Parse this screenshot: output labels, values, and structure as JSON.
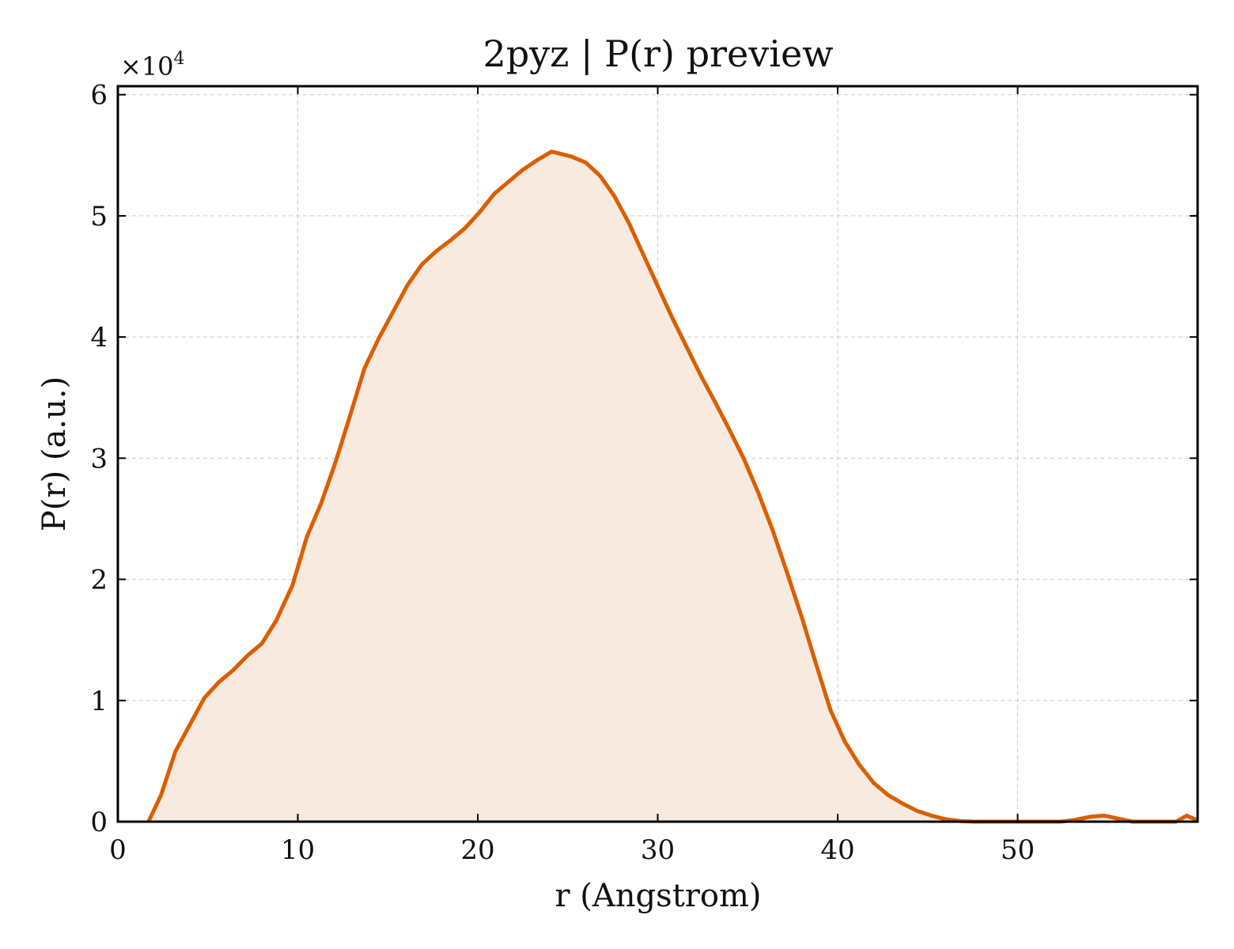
{
  "colors": {
    "line": "#d95f02",
    "fill": "#f9eadf"
  },
  "chart_data": {
    "type": "area",
    "title": "2pyz | P(r) preview",
    "xlabel": "r (Angstrom)",
    "ylabel": "P(r) (a.u.)",
    "y_multiplier_text": "×10",
    "y_multiplier_exponent": "4",
    "xlim": [
      0,
      60
    ],
    "ylim": [
      0,
      60700
    ],
    "xticks": [
      0,
      10,
      20,
      30,
      40,
      50
    ],
    "xtick_labels": [
      "0",
      "10",
      "20",
      "30",
      "40",
      "50"
    ],
    "yticks": [
      0,
      10000,
      20000,
      30000,
      40000,
      50000,
      60000
    ],
    "ytick_labels": [
      "0",
      "1",
      "2",
      "3",
      "4",
      "5",
      "6"
    ],
    "grid": true,
    "legend": "none",
    "series": [
      {
        "x": [
          1.7,
          2.4,
          3.2,
          4.0,
          4.8,
          5.6,
          6.4,
          7.2,
          8.0,
          8.8,
          9.7,
          10.5,
          11.3,
          12.1,
          12.9,
          13.7,
          14.5,
          15.3,
          16.1,
          16.9,
          17.7,
          18.5,
          19.3,
          20.1,
          20.9,
          21.7,
          22.5,
          23.3,
          24.1,
          24.4,
          25.2,
          26.0,
          26.8,
          27.6,
          28.4,
          29.2,
          30.0,
          30.8,
          31.6,
          32.4,
          33.2,
          34.0,
          34.8,
          35.6,
          36.4,
          37.2,
          38.0,
          38.8,
          39.6,
          40.4,
          41.2,
          42.0,
          42.8,
          43.6,
          44.4,
          45.2,
          46.0,
          46.8,
          47.6,
          48.4,
          49.2,
          50.0,
          50.8,
          51.6,
          52.4,
          53.2,
          54.0,
          54.8,
          55.6,
          56.4,
          57.2,
          58.0,
          58.8,
          59.4,
          60.0
        ],
        "y": [
          0,
          2200,
          5800,
          8000,
          10200,
          11500,
          12500,
          13700,
          14700,
          16600,
          19500,
          23500,
          26300,
          29700,
          33500,
          37400,
          39900,
          42100,
          44300,
          46000,
          47100,
          48000,
          49000,
          50300,
          51800,
          52800,
          53800,
          54600,
          55300,
          55200,
          54900,
          54400,
          53300,
          51600,
          49400,
          46800,
          44200,
          41600,
          39200,
          36800,
          34600,
          32300,
          29900,
          27100,
          24000,
          20500,
          16900,
          13000,
          9200,
          6600,
          4700,
          3200,
          2200,
          1500,
          900,
          500,
          200,
          50,
          0,
          0,
          0,
          0,
          0,
          0,
          0,
          150,
          400,
          500,
          250,
          0,
          0,
          0,
          0,
          500,
          100
        ]
      }
    ]
  }
}
